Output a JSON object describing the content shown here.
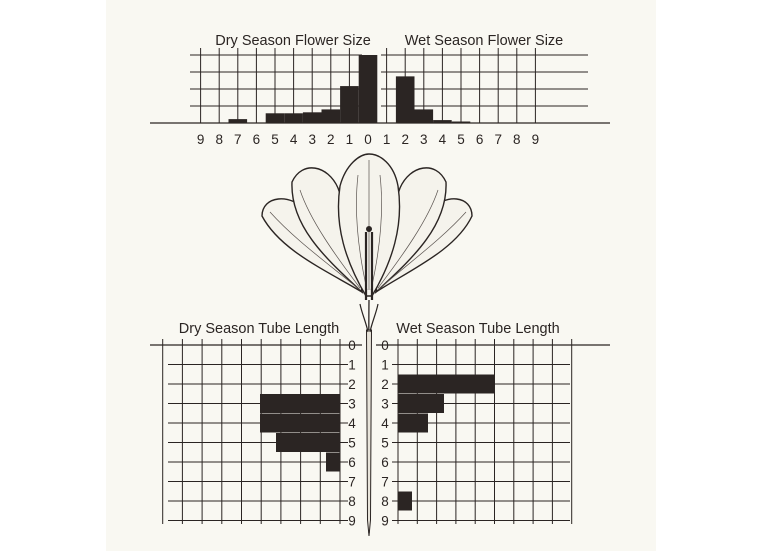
{
  "chart_data": [
    {
      "type": "bar",
      "orientation": "vertical",
      "title": "Dry Season Flower Size",
      "x": [
        0,
        1,
        2,
        3,
        4,
        5,
        6,
        7,
        8,
        9
      ],
      "values": [
        3.5,
        1.9,
        0.7,
        0.55,
        0.5,
        0.5,
        0,
        0.2,
        0,
        0
      ],
      "ylim": [
        0,
        3.5
      ],
      "grid": true,
      "tick_labels": [
        "9",
        "8",
        "7",
        "6",
        "5",
        "4",
        "3",
        "2",
        "1",
        "0"
      ]
    },
    {
      "type": "bar",
      "orientation": "vertical",
      "title": "Wet Season Flower Size",
      "x": [
        1,
        2,
        3,
        4,
        5,
        6,
        7,
        8,
        9
      ],
      "values": [
        0,
        2.4,
        0.7,
        0.15,
        0.05,
        0,
        0,
        0,
        0
      ],
      "ylim": [
        0,
        3.5
      ],
      "grid": true,
      "tick_labels": [
        "1",
        "2",
        "3",
        "4",
        "5",
        "6",
        "7",
        "8",
        "9"
      ]
    },
    {
      "type": "bar",
      "orientation": "horizontal",
      "title": "Dry Season Tube Length",
      "categories": [
        "0",
        "1",
        "2",
        "3",
        "4",
        "5",
        "6",
        "7",
        "8",
        "9"
      ],
      "values": [
        0,
        0,
        0,
        4,
        4,
        3.2,
        0.7,
        0,
        0,
        0
      ],
      "grid": true
    },
    {
      "type": "bar",
      "orientation": "horizontal",
      "title": "Wet Season Tube Length",
      "categories": [
        "0",
        "1",
        "2",
        "3",
        "4",
        "5",
        "6",
        "7",
        "8",
        "9"
      ],
      "values": [
        0,
        0,
        4.8,
        2.3,
        1.5,
        0,
        0,
        0,
        0.7,
        0
      ],
      "grid": true
    }
  ]
}
